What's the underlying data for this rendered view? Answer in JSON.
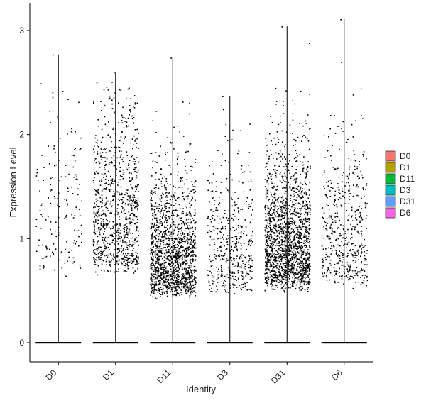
{
  "chart_data": {
    "type": "violin",
    "categories": [
      "D0",
      "D1",
      "D11",
      "D3",
      "D31",
      "D6"
    ],
    "xlabel": "Identity",
    "ylabel": "Expression Level",
    "ylim": [
      -0.15,
      3.3
    ],
    "yticks": [
      0,
      1,
      2,
      3
    ],
    "grid": false,
    "legend_position": "right",
    "series": [
      {
        "name": "D0",
        "color": "#F8766D",
        "max": 2.77,
        "zero_fraction": 0.55,
        "mean_nonzero": 1.05,
        "n_points_shown": 160
      },
      {
        "name": "D1",
        "color": "#B79F00",
        "max": 2.6,
        "zero_fraction": 0.45,
        "mean_nonzero": 1.05,
        "n_points_shown": 900
      },
      {
        "name": "D11",
        "color": "#00BA38",
        "max": 2.74,
        "zero_fraction": 0.45,
        "mean_nonzero": 0.7,
        "n_points_shown": 1500
      },
      {
        "name": "D3",
        "color": "#00BFC4",
        "max": 2.37,
        "zero_fraction": 0.5,
        "mean_nonzero": 0.75,
        "n_points_shown": 450
      },
      {
        "name": "D31",
        "color": "#619CFF",
        "max": 3.04,
        "zero_fraction": 0.4,
        "mean_nonzero": 0.8,
        "n_points_shown": 1700
      },
      {
        "name": "D6",
        "color": "#F564E3",
        "max": 3.11,
        "zero_fraction": 0.5,
        "mean_nonzero": 0.85,
        "n_points_shown": 500
      }
    ]
  }
}
